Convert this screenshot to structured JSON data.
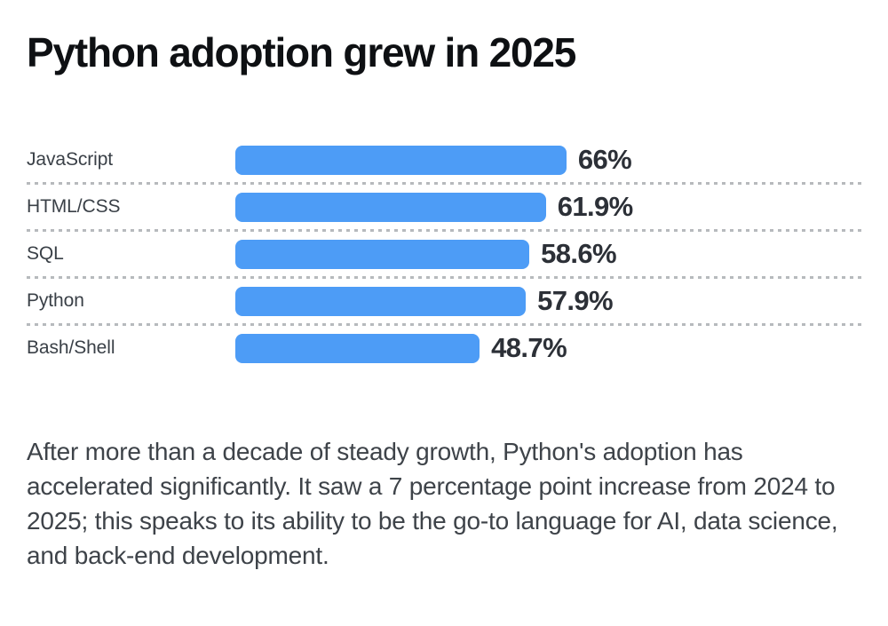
{
  "title": "Python adoption grew in 2025",
  "chart_data": {
    "type": "bar",
    "orientation": "horizontal",
    "title": "Python adoption grew in 2025",
    "categories": [
      "JavaScript",
      "HTML/CSS",
      "SQL",
      "Python",
      "Bash/Shell"
    ],
    "values": [
      66,
      61.9,
      58.6,
      57.9,
      48.7
    ],
    "value_labels": [
      "66%",
      "61.9%",
      "58.6%",
      "57.9%",
      "48.7%"
    ],
    "unit": "%",
    "xlim": [
      0,
      100
    ],
    "grid": false,
    "legend": "none",
    "separator_style": "dotted",
    "bar_color": "#4d9cf6"
  },
  "caption": "After more than a decade of steady growth, Python's adoption has accelerated significantly. It saw a 7 percentage point increase from 2024 to 2025; this speaks to its ability to be the go-to language for AI, data science, and back-end development."
}
